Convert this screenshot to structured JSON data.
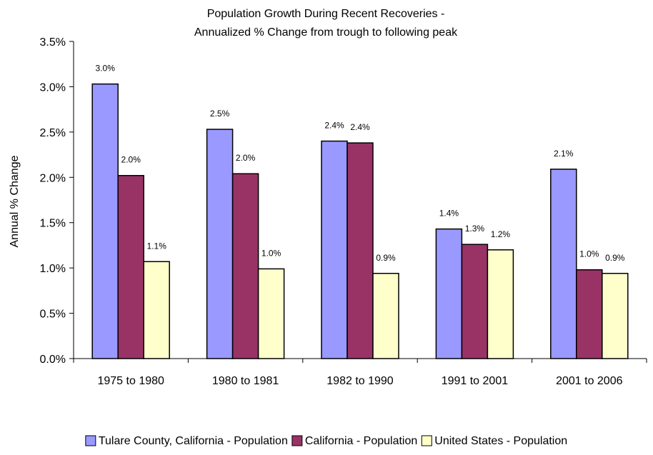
{
  "chart_data": {
    "type": "bar",
    "title": "Population Growth During Recent Recoveries -",
    "subtitle": "Annualized % Change from trough to following peak",
    "ylabel": "Annual % Change",
    "xlabel": "",
    "ylim": [
      0,
      3.5
    ],
    "ytick_step": 0.5,
    "ytick_labels": [
      "0.0%",
      "0.5%",
      "1.0%",
      "1.5%",
      "2.0%",
      "2.5%",
      "3.0%",
      "3.5%"
    ],
    "grid": false,
    "legend_position": "bottom",
    "categories": [
      "1975 to 1980",
      "1980 to 1981",
      "1982 to 1990",
      "1991 to 2001",
      "2001 to 2006"
    ],
    "series": [
      {
        "name": "Tulare County, California - Population",
        "color": "#9999ff",
        "values": [
          3.03,
          2.53,
          2.4,
          1.43,
          2.09
        ],
        "labels": [
          "3.0%",
          "2.5%",
          "2.4%",
          "1.4%",
          "2.1%"
        ]
      },
      {
        "name": "California - Population",
        "color": "#993366",
        "values": [
          2.02,
          2.04,
          2.38,
          1.26,
          0.98
        ],
        "labels": [
          "2.0%",
          "2.0%",
          "2.4%",
          "1.3%",
          "1.0%"
        ]
      },
      {
        "name": "United States - Population",
        "color": "#ffffcc",
        "values": [
          1.07,
          0.99,
          0.94,
          1.2,
          0.94
        ],
        "labels": [
          "1.1%",
          "1.0%",
          "0.9%",
          "1.2%",
          "0.9%"
        ]
      }
    ]
  }
}
